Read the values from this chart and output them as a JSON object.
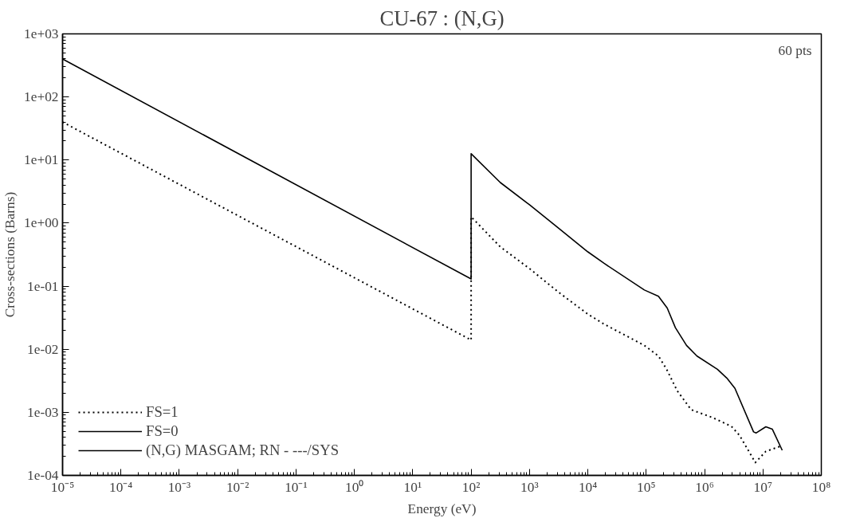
{
  "chart_data": {
    "type": "line",
    "title": "CU-67 : (N,G)",
    "xlabel": "Energy (eV)",
    "ylabel": "Cross-sections (Barns)",
    "log": "xy",
    "grid": false,
    "legend": "bottom left",
    "marker": "none",
    "xlim": [
      1e-05,
      100000000.0
    ],
    "ylim": [
      0.0001,
      1000.0
    ],
    "xticks": [
      {
        "value": 1e-05,
        "label": "10⁻⁵"
      },
      {
        "value": 0.0001,
        "label": "10⁻⁴"
      },
      {
        "value": 0.001,
        "label": "10⁻³"
      },
      {
        "value": 0.01,
        "label": "10⁻²"
      },
      {
        "value": 0.1,
        "label": "10⁻¹"
      },
      {
        "value": 1,
        "label": "10⁰"
      },
      {
        "value": 10,
        "label": "10¹"
      },
      {
        "value": 100,
        "label": "10²"
      },
      {
        "value": 1000,
        "label": "10³"
      },
      {
        "value": 10000,
        "label": "10⁴"
      },
      {
        "value": 100000,
        "label": "10⁵"
      },
      {
        "value": 1000000,
        "label": "10⁶"
      },
      {
        "value": 10000000,
        "label": "10⁷"
      },
      {
        "value": 100000000,
        "label": "10⁸"
      }
    ],
    "yticks": [
      {
        "value": 0.0001,
        "label": "1e-04"
      },
      {
        "value": 0.001,
        "label": "1e-03"
      },
      {
        "value": 0.01,
        "label": "1e-02"
      },
      {
        "value": 0.1,
        "label": "1e-01"
      },
      {
        "value": 1,
        "label": "1e+00"
      },
      {
        "value": 10,
        "label": "1e+01"
      },
      {
        "value": 100,
        "label": "1e+02"
      },
      {
        "value": 1000,
        "label": "1e+03"
      }
    ],
    "annotations": [
      "60 pts"
    ],
    "series": [
      {
        "name": "FS=1",
        "color": "#000000",
        "line_style": "dotted",
        "x": [
          1e-05,
          100,
          100,
          316,
          1000,
          3160,
          10000,
          19000,
          93000,
          162000,
          224000,
          339000,
          589000,
          1350000,
          2880000,
          3980000,
          7400000,
          11200000,
          20000000
        ],
        "values": [
          40,
          0.014,
          1.26,
          0.42,
          0.19,
          0.08,
          0.036,
          0.025,
          0.0115,
          0.0078,
          0.0048,
          0.0022,
          0.0011,
          0.00083,
          0.0006,
          0.00043,
          0.00016,
          0.00024,
          0.00029
        ]
      },
      {
        "name": "FS=0",
        "color": "#000000",
        "line_style": "solid",
        "x": [
          1e-05,
          100,
          100,
          316,
          1000,
          3160,
          10000,
          19000,
          93000,
          162000,
          229000,
          316000,
          490000,
          741000,
          1660000,
          2400000,
          3310000,
          6900000,
          7600000,
          11200000,
          14500000,
          21400000
        ],
        "values": [
          400,
          0.13,
          12.6,
          4.4,
          1.95,
          0.83,
          0.35,
          0.23,
          0.087,
          0.069,
          0.045,
          0.022,
          0.0115,
          0.0078,
          0.0048,
          0.0035,
          0.0024,
          0.00049,
          0.00047,
          0.00059,
          0.00054,
          0.00025
        ]
      },
      {
        "name": "(N,G) MASGAM; RN - ---/SYS",
        "color": "#000000",
        "line_style": "solid"
      }
    ]
  }
}
